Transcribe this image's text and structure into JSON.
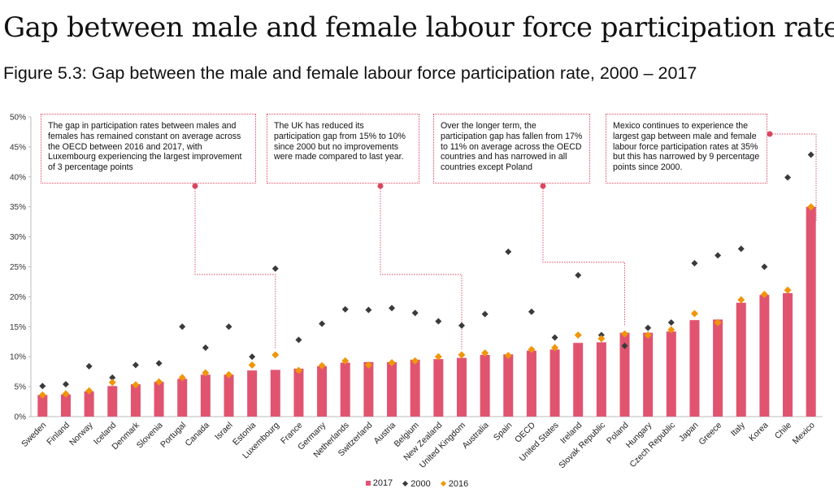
{
  "page_title": "Gap between male and female labour force participation rate",
  "figure_title": "Figure 5.3: Gap between the male and female labour force participation rate, 2000 – 2017",
  "annotations": [
    "The gap in participation rates between males and females has remained constant on average across the OECD between 2016 and 2017, with Luxembourg experiencing the largest improvement of 3 percentage points",
    "The UK has reduced its participation gap from 15% to 10% since 2000 but no improvements were made compared to last year.",
    "Over the longer term, the participation gap has fallen from 17% to 11% on average across the OECD countries and has narrowed in all countries except Poland",
    "Mexico continues to experience the largest gap between male and female labour force participation rates at 35% but this has narrowed by 9 percentage points since 2000."
  ],
  "colors": {
    "bar_2017": "#e05470",
    "marker_2000": "#3a3a3a",
    "marker_2016": "#f0960a",
    "annotation_line": "#d9485f"
  },
  "chart_data": {
    "type": "bar",
    "categories": [
      "Sweden",
      "Finland",
      "Norway",
      "Iceland",
      "Denmark",
      "Slovenia",
      "Portugal",
      "Canada",
      "Israel",
      "Estonia",
      "Luxembourg",
      "France",
      "Germany",
      "Netherlands",
      "Switzerland",
      "Austria",
      "Belgium",
      "New Zealand",
      "United Kingdom",
      "Australia",
      "Spain",
      "OECD",
      "United States",
      "Ireland",
      "Slovak Republic",
      "Poland",
      "Hungary",
      "Czech Republic",
      "Japan",
      "Greece",
      "Italy",
      "Korea",
      "Chile",
      "Mexico"
    ],
    "series": [
      {
        "name": "2017",
        "kind": "bar",
        "values": [
          3.6,
          3.7,
          4.2,
          5.1,
          5.4,
          5.8,
          6.3,
          7.0,
          7.0,
          7.7,
          7.8,
          8.0,
          8.4,
          9.0,
          9.1,
          9.1,
          9.5,
          9.6,
          9.8,
          10.3,
          10.4,
          11.0,
          11.2,
          12.3,
          12.4,
          14.0,
          14.0,
          14.2,
          16.1,
          16.2,
          19.0,
          20.3,
          20.6,
          35.0
        ]
      },
      {
        "name": "2000",
        "kind": "marker",
        "values": [
          5.1,
          5.4,
          8.4,
          6.5,
          8.6,
          8.9,
          15.0,
          11.5,
          15.0,
          10.0,
          24.7,
          12.8,
          15.5,
          17.9,
          17.8,
          18.1,
          17.3,
          15.9,
          15.2,
          17.1,
          27.5,
          17.5,
          13.2,
          23.6,
          13.6,
          11.8,
          14.8,
          15.7,
          25.6,
          26.9,
          28.0,
          25.0,
          39.9,
          43.7
        ]
      },
      {
        "name": "2016",
        "kind": "marker",
        "values": [
          3.6,
          3.8,
          4.3,
          5.7,
          5.3,
          5.8,
          6.5,
          7.3,
          7.0,
          8.6,
          10.3,
          7.7,
          8.5,
          9.3,
          8.6,
          9.0,
          9.3,
          10.0,
          10.3,
          10.6,
          10.2,
          11.2,
          11.5,
          13.6,
          13.0,
          13.8,
          13.6,
          14.5,
          17.2,
          15.7,
          19.5,
          20.4,
          21.1,
          35.0
        ]
      }
    ],
    "yticks": [
      "0%",
      "5%",
      "10%",
      "15%",
      "20%",
      "25%",
      "30%",
      "35%",
      "40%",
      "45%",
      "50%"
    ],
    "ylim": [
      0,
      50
    ],
    "grid": false,
    "legend_position": "bottom"
  }
}
